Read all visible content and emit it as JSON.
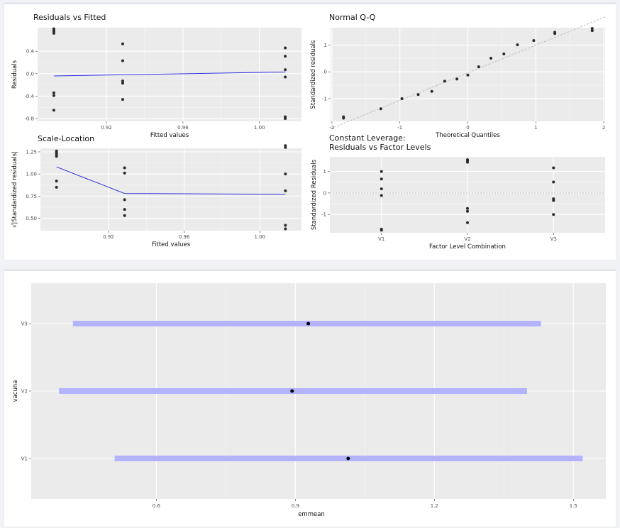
{
  "chart_data": [
    {
      "type": "scatter",
      "title": "Residuals vs Fitted",
      "xlabel": "Fitted values",
      "ylabel": "Residuals",
      "xlim": [
        0.884,
        1.022
      ],
      "ylim": [
        -0.85,
        0.82
      ],
      "xticks": [
        0.92,
        0.96,
        1.0
      ],
      "xtick_labels": [
        "0.92",
        "0.96",
        "1.00"
      ],
      "yticks": [
        -0.8,
        -0.4,
        0.0,
        0.4
      ],
      "ytick_labels": [
        "-0.8",
        "-0.4",
        "0.0",
        "0.4"
      ],
      "points": [
        {
          "x": 0.8925,
          "y": 0.8
        },
        {
          "x": 0.8925,
          "y": 0.77
        },
        {
          "x": 0.8925,
          "y": 0.75
        },
        {
          "x": 0.8925,
          "y": 0.72
        },
        {
          "x": 0.8925,
          "y": -0.34
        },
        {
          "x": 0.8925,
          "y": -0.39
        },
        {
          "x": 0.8925,
          "y": -0.65
        },
        {
          "x": 0.9285,
          "y": 0.53
        },
        {
          "x": 0.9285,
          "y": 0.23
        },
        {
          "x": 0.9285,
          "y": -0.13
        },
        {
          "x": 0.9285,
          "y": -0.17
        },
        {
          "x": 0.9285,
          "y": -0.46
        },
        {
          "x": 1.0135,
          "y": 0.46
        },
        {
          "x": 1.0135,
          "y": 0.31
        },
        {
          "x": 1.0135,
          "y": 0.07
        },
        {
          "x": 1.0135,
          "y": -0.06
        },
        {
          "x": 1.0135,
          "y": -0.77
        },
        {
          "x": 1.0135,
          "y": -0.8
        }
      ],
      "annotations": [],
      "smooth_line": [
        {
          "x": 0.8925,
          "y": -0.04
        },
        {
          "x": 1.0135,
          "y": 0.03
        }
      ]
    },
    {
      "type": "scatter",
      "title": "Normal Q-Q",
      "xlabel": "Theoretical Quantiles",
      "ylabel": "Standardized residuals",
      "xlim": [
        -2.02,
        2.02
      ],
      "ylim": [
        -1.85,
        1.65
      ],
      "xticks": [
        -2,
        -1,
        0,
        1,
        2
      ],
      "xtick_labels": [
        "-2",
        "-1",
        "0",
        "1",
        "2"
      ],
      "yticks": [
        -1,
        0,
        1
      ],
      "ytick_labels": [
        "-1",
        "0",
        "1"
      ],
      "points": [
        {
          "x": -1.83,
          "y": -1.73
        },
        {
          "x": -1.83,
          "y": -1.68
        },
        {
          "x": -1.28,
          "y": -1.38
        },
        {
          "x": -0.97,
          "y": -1.0
        },
        {
          "x": -0.73,
          "y": -0.85
        },
        {
          "x": -0.53,
          "y": -0.73
        },
        {
          "x": -0.34,
          "y": -0.35
        },
        {
          "x": -0.16,
          "y": -0.27
        },
        {
          "x": 0.0,
          "y": -0.12
        },
        {
          "x": 0.16,
          "y": 0.19
        },
        {
          "x": 0.34,
          "y": 0.51
        },
        {
          "x": 0.53,
          "y": 0.67
        },
        {
          "x": 0.73,
          "y": 1.01
        },
        {
          "x": 0.97,
          "y": 1.17
        },
        {
          "x": 1.28,
          "y": 1.43
        },
        {
          "x": 1.28,
          "y": 1.48
        },
        {
          "x": 1.83,
          "y": 1.54
        },
        {
          "x": 1.83,
          "y": 1.62
        }
      ],
      "annotations": [],
      "reference_line": [
        {
          "x": -2.02,
          "y": -2.12
        },
        {
          "x": 2.02,
          "y": 2.05
        }
      ]
    },
    {
      "type": "scatter",
      "title": "Scale-Location",
      "xlabel": "Fitted values",
      "ylabel": "√|Standardized residuals|",
      "xlim": [
        0.884,
        1.022
      ],
      "ylim": [
        0.36,
        1.29
      ],
      "xticks": [
        0.92,
        0.96,
        1.0
      ],
      "xtick_labels": [
        "0.92",
        "0.96",
        "1.00"
      ],
      "yticks": [
        0.5,
        0.75,
        1.0,
        1.25
      ],
      "ytick_labels": [
        "0.50",
        "0.75",
        "1.00",
        "1.25"
      ],
      "points": [
        {
          "x": 0.8925,
          "y": 1.26
        },
        {
          "x": 0.8925,
          "y": 1.24
        },
        {
          "x": 0.8925,
          "y": 1.22
        },
        {
          "x": 0.8925,
          "y": 1.2
        },
        {
          "x": 0.8925,
          "y": 0.92
        },
        {
          "x": 0.8925,
          "y": 0.85
        },
        {
          "x": 0.9285,
          "y": 1.07
        },
        {
          "x": 0.9285,
          "y": 1.01
        },
        {
          "x": 0.9285,
          "y": 0.71
        },
        {
          "x": 0.9285,
          "y": 0.6
        },
        {
          "x": 0.9285,
          "y": 0.53
        },
        {
          "x": 1.0135,
          "y": 1.32
        },
        {
          "x": 1.0135,
          "y": 1.3
        },
        {
          "x": 1.0135,
          "y": 1.0
        },
        {
          "x": 1.0135,
          "y": 0.81
        },
        {
          "x": 1.0135,
          "y": 0.42
        },
        {
          "x": 1.0135,
          "y": 0.38
        }
      ],
      "annotations": [],
      "smooth_line": [
        {
          "x": 0.8925,
          "y": 1.08
        },
        {
          "x": 0.9285,
          "y": 0.78
        },
        {
          "x": 1.0135,
          "y": 0.77
        }
      ]
    },
    {
      "type": "scatter",
      "title": "Constant Leverage:",
      "subtitle": "Residuals vs Factor Levels",
      "xlabel": "Factor Level Combination",
      "ylabel": "Standardized Residuals",
      "categories": [
        "V1",
        "V2",
        "V3"
      ],
      "ylim": [
        -1.85,
        1.68
      ],
      "yticks": [
        -1,
        0,
        1
      ],
      "ytick_labels": [
        "-1",
        "0",
        "1"
      ],
      "points": [
        {
          "cat": "V1",
          "y": 1.0
        },
        {
          "cat": "V1",
          "y": 0.65
        },
        {
          "cat": "V1",
          "y": 0.19
        },
        {
          "cat": "V1",
          "y": -0.12
        },
        {
          "cat": "V1",
          "y": -1.68
        },
        {
          "cat": "V1",
          "y": -1.73
        },
        {
          "cat": "V2",
          "y": 1.55
        },
        {
          "cat": "V2",
          "y": 1.5
        },
        {
          "cat": "V2",
          "y": 1.43
        },
        {
          "cat": "V2",
          "y": -0.72
        },
        {
          "cat": "V2",
          "y": -0.85
        },
        {
          "cat": "V2",
          "y": -1.38
        },
        {
          "cat": "V3",
          "y": 1.17
        },
        {
          "cat": "V3",
          "y": 0.51
        },
        {
          "cat": "V3",
          "y": -0.27
        },
        {
          "cat": "V3",
          "y": -0.35
        },
        {
          "cat": "V3",
          "y": -1.0
        }
      ],
      "annotations": [],
      "reference_line_y": 0
    },
    {
      "type": "interval",
      "title": "",
      "xlabel": "emmean",
      "ylabel": "vacuna",
      "categories": [
        "V1",
        "V2",
        "V3"
      ],
      "xlim": [
        0.33,
        1.57
      ],
      "xticks": [
        0.6,
        0.9,
        1.2,
        1.5
      ],
      "xtick_labels": [
        "0.6",
        "0.9",
        "1.2",
        "1.5"
      ],
      "estimates": [
        {
          "cat": "V1",
          "emmean": 1.014,
          "lower": 0.51,
          "upper": 1.52
        },
        {
          "cat": "V2",
          "emmean": 0.893,
          "lower": 0.39,
          "upper": 1.4
        },
        {
          "cat": "V3",
          "emmean": 0.928,
          "lower": 0.42,
          "upper": 1.43
        }
      ],
      "bar_color": "#b3b3ff"
    }
  ]
}
